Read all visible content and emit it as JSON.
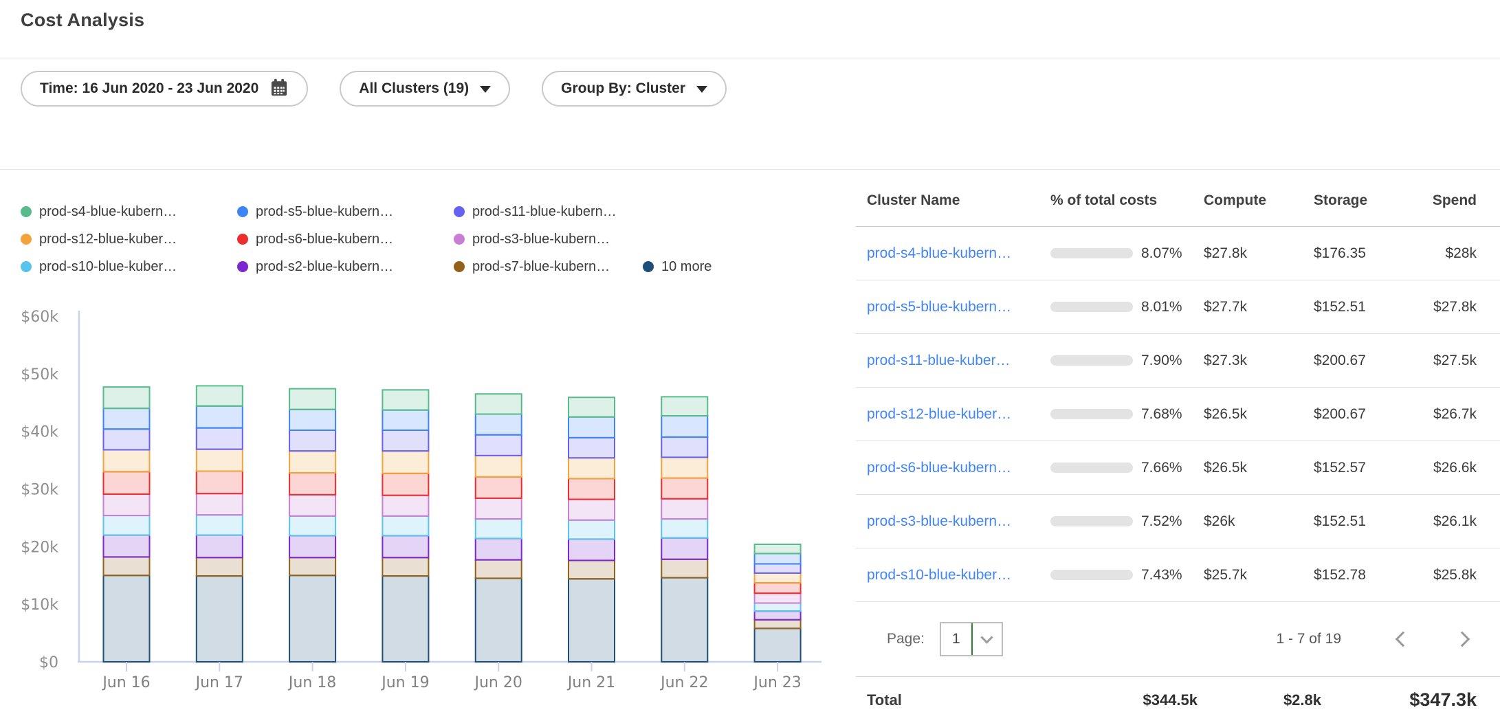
{
  "header": {
    "title": "Cost Analysis"
  },
  "filters": {
    "time": {
      "label": "Time: 16 Jun 2020 - 23 Jun 2020",
      "icon": "calendar-icon"
    },
    "clusters": {
      "label": "All Clusters (19)",
      "icon": "chevron-down-icon"
    },
    "group_by": {
      "label": "Group By: Cluster",
      "icon": "chevron-down-icon"
    }
  },
  "legend": {
    "items": [
      {
        "label": "prod-s4-blue-kubern…",
        "color": "#57bb8a"
      },
      {
        "label": "prod-s5-blue-kubern…",
        "color": "#3d85f4"
      },
      {
        "label": "prod-s11-blue-kubern…",
        "color": "#6462ef"
      },
      {
        "label": "prod-s12-blue-kuber…",
        "color": "#f2a33c"
      },
      {
        "label": "prod-s6-blue-kubern…",
        "color": "#ee2e2e"
      },
      {
        "label": "prod-s3-blue-kubern…",
        "color": "#c87fd3"
      },
      {
        "label": "prod-s10-blue-kuber…",
        "color": "#58c4ee"
      },
      {
        "label": "prod-s2-blue-kubern…",
        "color": "#7a28cf"
      },
      {
        "label": "prod-s7-blue-kubern…",
        "color": "#92611c"
      },
      {
        "label": "10 more",
        "color": "#1f4e79"
      }
    ],
    "rows": [
      [
        0,
        1,
        2
      ],
      [
        3,
        4,
        5
      ],
      [
        6,
        7,
        8,
        9
      ]
    ]
  },
  "chart_data": {
    "type": "bar",
    "stacked": true,
    "title": "",
    "xlabel": "",
    "ylabel": "",
    "x": [
      "Jun 16",
      "Jun 17",
      "Jun 18",
      "Jun 19",
      "Jun 20",
      "Jun 21",
      "Jun 22",
      "Jun 23"
    ],
    "ylim_k": [
      0,
      60
    ],
    "ytick_values_k": [
      0,
      10,
      20,
      30,
      40,
      50,
      60
    ],
    "ytick_labels": [
      "$0",
      "$10k",
      "$20k",
      "$30k",
      "$40k",
      "$50k",
      "$60k"
    ],
    "grid": false,
    "legend_position": "top",
    "units": "USD thousands per day, stacked bottom to top",
    "series": [
      {
        "name": "10 more",
        "color": "#1f4e79",
        "values_k": [
          15.0,
          14.9,
          15.0,
          14.9,
          14.5,
          14.4,
          14.6,
          5.8
        ]
      },
      {
        "name": "prod-s7-blue-kubern…",
        "color": "#92611c",
        "values_k": [
          3.2,
          3.2,
          3.1,
          3.2,
          3.2,
          3.2,
          3.2,
          1.5
        ]
      },
      {
        "name": "prod-s2-blue-kubern…",
        "color": "#7a28cf",
        "values_k": [
          3.8,
          3.9,
          3.8,
          3.8,
          3.7,
          3.7,
          3.7,
          1.5
        ]
      },
      {
        "name": "prod-s10-blue-kuber…",
        "color": "#58c4ee",
        "values_k": [
          3.4,
          3.5,
          3.4,
          3.4,
          3.4,
          3.3,
          3.3,
          1.4
        ]
      },
      {
        "name": "prod-s3-blue-kubern…",
        "color": "#c87fd3",
        "values_k": [
          3.7,
          3.7,
          3.7,
          3.6,
          3.6,
          3.6,
          3.5,
          1.7
        ]
      },
      {
        "name": "prod-s6-blue-kubern…",
        "color": "#ee2e2e",
        "values_k": [
          3.9,
          3.9,
          3.8,
          3.8,
          3.7,
          3.6,
          3.6,
          1.8
        ]
      },
      {
        "name": "prod-s12-blue-kuber…",
        "color": "#f2a33c",
        "values_k": [
          3.8,
          3.8,
          3.8,
          3.9,
          3.7,
          3.6,
          3.6,
          1.7
        ]
      },
      {
        "name": "prod-s11-blue-kubern…",
        "color": "#6462ef",
        "values_k": [
          3.6,
          3.7,
          3.6,
          3.6,
          3.6,
          3.5,
          3.5,
          1.6
        ]
      },
      {
        "name": "prod-s5-blue-kubern…",
        "color": "#3d85f4",
        "values_k": [
          3.6,
          3.8,
          3.6,
          3.5,
          3.6,
          3.6,
          3.7,
          1.8
        ]
      },
      {
        "name": "prod-s4-blue-kubern…",
        "color": "#57bb8a",
        "values_k": [
          3.7,
          3.5,
          3.6,
          3.5,
          3.5,
          3.4,
          3.3,
          1.6
        ]
      }
    ]
  },
  "table": {
    "columns": [
      "Cluster Name",
      "% of total costs",
      "Compute",
      "Storage",
      "Spend"
    ],
    "rows": [
      {
        "name": "prod-s4-blue-kubern…",
        "pct": "8.07%",
        "pct_value": 8.07,
        "compute": "$27.8k",
        "storage": "$176.35",
        "spend": "$28k"
      },
      {
        "name": "prod-s5-blue-kubern…",
        "pct": "8.01%",
        "pct_value": 8.01,
        "compute": "$27.7k",
        "storage": "$152.51",
        "spend": "$27.8k"
      },
      {
        "name": "prod-s11-blue-kuber…",
        "pct": "7.90%",
        "pct_value": 7.9,
        "compute": "$27.3k",
        "storage": "$200.67",
        "spend": "$27.5k"
      },
      {
        "name": "prod-s12-blue-kuber…",
        "pct": "7.68%",
        "pct_value": 7.68,
        "compute": "$26.5k",
        "storage": "$200.67",
        "spend": "$26.7k"
      },
      {
        "name": "prod-s6-blue-kubern…",
        "pct": "7.66%",
        "pct_value": 7.66,
        "compute": "$26.5k",
        "storage": "$152.57",
        "spend": "$26.6k"
      },
      {
        "name": "prod-s3-blue-kubern…",
        "pct": "7.52%",
        "pct_value": 7.52,
        "compute": "$26k",
        "storage": "$152.51",
        "spend": "$26.1k"
      },
      {
        "name": "prod-s10-blue-kuber…",
        "pct": "7.43%",
        "pct_value": 7.43,
        "compute": "$25.7k",
        "storage": "$152.78",
        "spend": "$25.8k"
      }
    ],
    "pagination": {
      "label": "Page:",
      "page": "1",
      "range": "1 - 7 of 19",
      "icons": [
        "chevron-down-icon",
        "chevron-left-icon",
        "chevron-right-icon"
      ]
    },
    "total": {
      "label": "Total",
      "compute": "$344.5k",
      "storage": "$2.8k",
      "spend": "$347.3k"
    }
  },
  "colors": {
    "link": "#4285f4",
    "progress_fill": "#4285f4",
    "progress_track": "#e3e3e3",
    "axis": "#c7d2ec",
    "axis_text": "#8e8e8e",
    "page_select_divider": "#2f7d31",
    "bar_fill_opacity": 0.2
  }
}
